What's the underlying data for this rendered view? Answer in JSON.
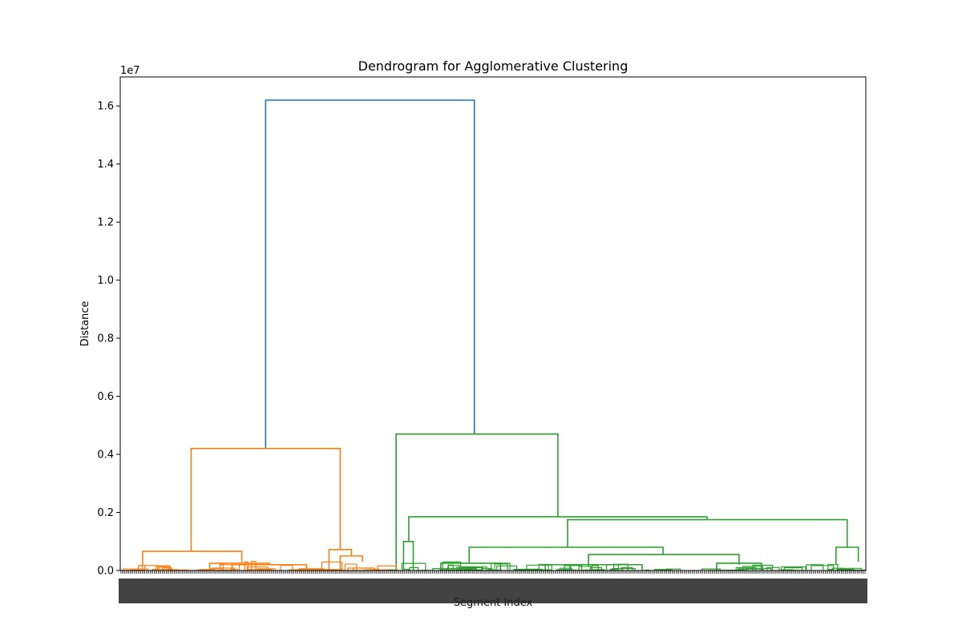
{
  "chart_data": {
    "type": "dendrogram",
    "title": "Dendrogram for Agglomerative Clustering",
    "xlabel": "Segment Index",
    "ylabel": "Distance",
    "y_offset_label": "1e7",
    "ylim": [
      0,
      1.7
    ],
    "yticks": [
      "0.0",
      "0.2",
      "0.4",
      "0.6",
      "0.8",
      "1.0",
      "1.2",
      "1.4",
      "1.6"
    ],
    "grid": false,
    "colors": {
      "root": "#1f77b4",
      "cluster1": "#ff7f0e",
      "cluster2": "#2ca02c"
    },
    "main_links": [
      {
        "cluster": "root",
        "left": {
          "x": 0.195,
          "y": 0.42
        },
        "right": {
          "x": 0.475,
          "y": 0.47
        },
        "height": 1.62
      },
      {
        "cluster": "cluster1",
        "left": {
          "x": 0.095,
          "y": 0.066
        },
        "right": {
          "x": 0.295,
          "y": 0.072
        },
        "height": 0.42
      },
      {
        "cluster": "cluster2",
        "left": {
          "x": 0.37,
          "y": 0.0
        },
        "right": {
          "x": 0.587,
          "y": 0.185
        },
        "height": 0.47
      },
      {
        "cluster": "cluster2",
        "left": {
          "x": 0.387,
          "y": 0.1
        },
        "right": {
          "x": 0.787,
          "y": 0.175
        },
        "height": 0.185
      },
      {
        "cluster": "cluster2",
        "left": {
          "x": 0.6,
          "y": 0.08
        },
        "right": {
          "x": 0.975,
          "y": 0.08
        },
        "height": 0.175
      },
      {
        "cluster": "cluster2",
        "left": {
          "x": 0.468,
          "y": 0.025
        },
        "right": {
          "x": 0.728,
          "y": 0.055
        },
        "height": 0.08
      },
      {
        "cluster": "cluster2",
        "left": {
          "x": 0.628,
          "y": 0.015
        },
        "right": {
          "x": 0.83,
          "y": 0.02
        },
        "height": 0.055
      },
      {
        "cluster": "cluster2",
        "left": {
          "x": 0.96,
          "y": 0.02
        },
        "right": {
          "x": 0.99,
          "y": 0.03
        },
        "height": 0.08
      },
      {
        "cluster": "cluster1",
        "left": {
          "x": 0.03,
          "y": 0.015
        },
        "right": {
          "x": 0.163,
          "y": 0.025
        },
        "height": 0.066
      },
      {
        "cluster": "cluster1",
        "left": {
          "x": 0.28,
          "y": 0.0
        },
        "right": {
          "x": 0.31,
          "y": 0.05
        },
        "height": 0.072
      },
      {
        "cluster": "cluster1",
        "left": {
          "x": 0.295,
          "y": 0.0
        },
        "right": {
          "x": 0.325,
          "y": 0.03
        },
        "height": 0.05
      },
      {
        "cluster": "cluster1",
        "left": {
          "x": 0.12,
          "y": 0.0
        },
        "right": {
          "x": 0.2,
          "y": 0.02
        },
        "height": 0.025
      },
      {
        "cluster": "cluster1",
        "left": {
          "x": 0.15,
          "y": 0.0
        },
        "right": {
          "x": 0.25,
          "y": 0.0
        },
        "height": 0.02
      },
      {
        "cluster": "cluster2",
        "left": {
          "x": 0.38,
          "y": 0.0
        },
        "right": {
          "x": 0.393,
          "y": 0.0
        },
        "height": 0.1
      },
      {
        "cluster": "cluster2",
        "left": {
          "x": 0.43,
          "y": 0.0
        },
        "right": {
          "x": 0.51,
          "y": 0.0
        },
        "height": 0.025
      },
      {
        "cluster": "cluster2",
        "left": {
          "x": 0.8,
          "y": 0.0
        },
        "right": {
          "x": 0.86,
          "y": 0.0
        },
        "height": 0.025
      },
      {
        "cluster": "cluster2",
        "left": {
          "x": 0.57,
          "y": 0.0
        },
        "right": {
          "x": 0.7,
          "y": 0.0
        },
        "height": 0.02
      }
    ],
    "leaf_count": 560
  }
}
